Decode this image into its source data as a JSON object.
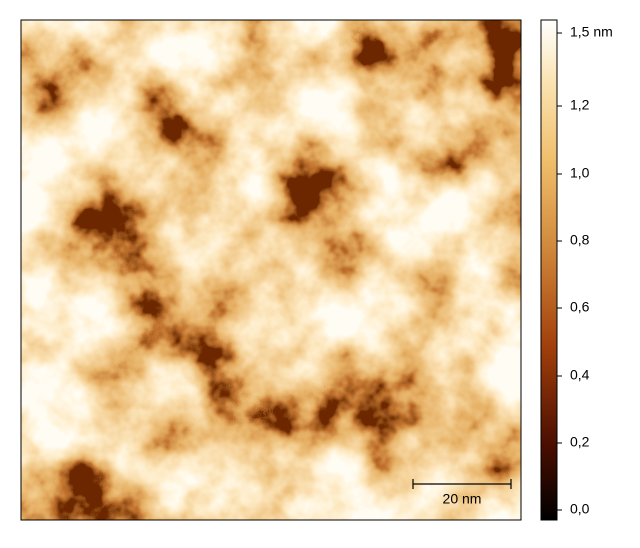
{
  "colorbar": {
    "ticks": [
      "0,0",
      "0,2",
      "0,4",
      "0,6",
      "0,8",
      "1,0",
      "1,2",
      "1,5 nm"
    ]
  },
  "scale_bar": {
    "label": "20 nm"
  }
}
